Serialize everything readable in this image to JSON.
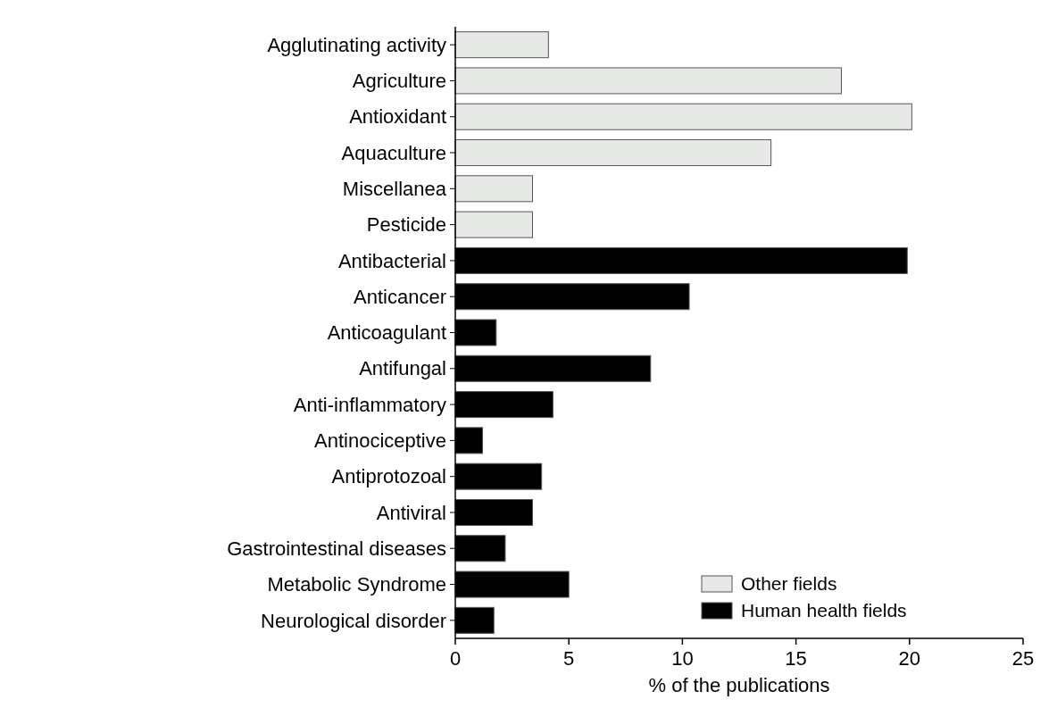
{
  "chart_data": {
    "type": "bar",
    "orientation": "horizontal",
    "xlabel": "% of the publications",
    "categories": [
      "Agglutinating activity",
      "Agriculture",
      "Antioxidant",
      "Aquaculture",
      "Miscellanea",
      "Pesticide",
      "Antibacterial",
      "Anticancer",
      "Anticoagulant",
      "Antifungal",
      "Anti-inflammatory",
      "Antinociceptive",
      "Antiprotozoal",
      "Antiviral",
      "Gastrointestinal diseases",
      "Metabolic Syndrome",
      "Neurological disorder"
    ],
    "series": [
      {
        "name": "Other fields",
        "color": "#e6e9e6",
        "values": [
          4.1,
          17.0,
          20.1,
          13.9,
          3.4,
          3.4,
          null,
          null,
          null,
          null,
          null,
          null,
          null,
          null,
          null,
          null,
          null
        ]
      },
      {
        "name": "Human health fields",
        "color": "#000000",
        "values": [
          null,
          null,
          null,
          null,
          null,
          null,
          19.9,
          10.3,
          1.8,
          8.6,
          4.3,
          1.2,
          3.8,
          3.4,
          2.2,
          5.0,
          1.7
        ]
      }
    ],
    "xlim": [
      0,
      25
    ],
    "xticks": [
      0,
      5,
      10,
      15,
      20,
      25
    ],
    "grid": false,
    "legend": "bottom right"
  }
}
